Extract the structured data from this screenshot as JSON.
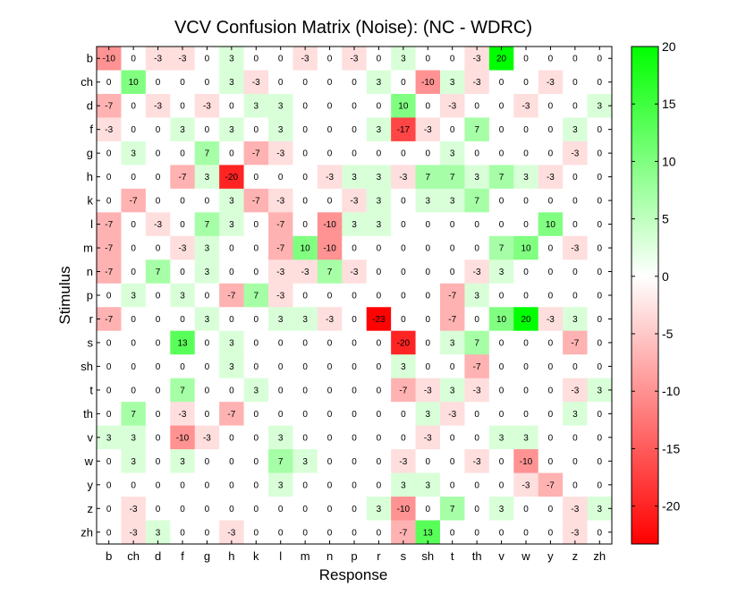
{
  "chart_data": {
    "type": "heatmap",
    "title": "VCV Confusion Matrix (Noise): (NC - WDRC)",
    "xlabel": "Response",
    "ylabel": "Stimulus",
    "x_categories": [
      "b",
      "ch",
      "d",
      "f",
      "g",
      "h",
      "k",
      "l",
      "m",
      "n",
      "p",
      "r",
      "s",
      "sh",
      "t",
      "th",
      "v",
      "w",
      "y",
      "z",
      "zh"
    ],
    "y_categories": [
      "b",
      "ch",
      "d",
      "f",
      "g",
      "h",
      "k",
      "l",
      "m",
      "n",
      "p",
      "r",
      "s",
      "sh",
      "t",
      "th",
      "v",
      "w",
      "y",
      "z",
      "zh"
    ],
    "values": [
      [
        -10,
        0,
        -3,
        -3,
        0,
        3,
        0,
        0,
        -3,
        0,
        -3,
        0,
        3,
        0,
        0,
        -3,
        20,
        0,
        0,
        0,
        0
      ],
      [
        0,
        10,
        0,
        0,
        0,
        3,
        -3,
        0,
        0,
        0,
        0,
        3,
        0,
        -10,
        3,
        -3,
        0,
        0,
        -3,
        0,
        0
      ],
      [
        -7,
        0,
        -3,
        0,
        -3,
        0,
        3,
        3,
        0,
        0,
        0,
        0,
        10,
        0,
        -3,
        0,
        0,
        -3,
        0,
        0,
        3
      ],
      [
        -3,
        0,
        0,
        3,
        0,
        3,
        0,
        3,
        0,
        0,
        0,
        3,
        -17,
        -3,
        0,
        7,
        0,
        0,
        0,
        3,
        0
      ],
      [
        0,
        3,
        0,
        0,
        7,
        0,
        -7,
        -3,
        0,
        0,
        0,
        0,
        0,
        0,
        3,
        0,
        0,
        0,
        0,
        -3,
        0
      ],
      [
        0,
        0,
        0,
        -7,
        3,
        -20,
        0,
        0,
        0,
        -3,
        3,
        3,
        -3,
        7,
        7,
        3,
        7,
        3,
        -3,
        0,
        0
      ],
      [
        0,
        -7,
        0,
        0,
        0,
        3,
        -7,
        -3,
        0,
        0,
        -3,
        3,
        0,
        3,
        3,
        7,
        0,
        0,
        0,
        0,
        0
      ],
      [
        -7,
        0,
        -3,
        0,
        7,
        3,
        0,
        -7,
        0,
        -10,
        3,
        3,
        0,
        0,
        0,
        0,
        0,
        0,
        10,
        0,
        0
      ],
      [
        -7,
        0,
        0,
        -3,
        3,
        0,
        0,
        -7,
        10,
        -10,
        0,
        0,
        0,
        0,
        0,
        0,
        7,
        10,
        0,
        -3,
        0
      ],
      [
        -7,
        0,
        7,
        0,
        3,
        0,
        0,
        -3,
        -3,
        7,
        -3,
        0,
        0,
        0,
        0,
        -3,
        3,
        0,
        0,
        0,
        0
      ],
      [
        0,
        3,
        0,
        3,
        0,
        -7,
        7,
        -3,
        0,
        0,
        0,
        0,
        0,
        0,
        -7,
        3,
        0,
        0,
        0,
        0,
        0
      ],
      [
        -7,
        0,
        0,
        0,
        3,
        0,
        0,
        3,
        3,
        -3,
        0,
        -23,
        0,
        0,
        -7,
        0,
        10,
        20,
        -3,
        3,
        0
      ],
      [
        0,
        0,
        0,
        13,
        0,
        3,
        0,
        0,
        0,
        0,
        0,
        0,
        -20,
        0,
        3,
        7,
        0,
        0,
        0,
        -7,
        0
      ],
      [
        0,
        0,
        0,
        0,
        0,
        3,
        0,
        0,
        0,
        0,
        0,
        0,
        3,
        0,
        0,
        -7,
        0,
        0,
        0,
        0,
        0
      ],
      [
        0,
        0,
        0,
        7,
        0,
        0,
        3,
        0,
        0,
        0,
        0,
        0,
        -7,
        -3,
        3,
        -3,
        0,
        0,
        0,
        -3,
        3
      ],
      [
        0,
        7,
        0,
        -3,
        0,
        -7,
        0,
        0,
        0,
        0,
        0,
        0,
        0,
        3,
        -3,
        0,
        0,
        0,
        0,
        3,
        0
      ],
      [
        3,
        3,
        0,
        -10,
        -3,
        0,
        0,
        3,
        0,
        0,
        0,
        0,
        0,
        -3,
        0,
        0,
        3,
        3,
        0,
        0,
        0
      ],
      [
        0,
        3,
        0,
        3,
        0,
        0,
        0,
        7,
        3,
        0,
        0,
        0,
        -3,
        0,
        0,
        -3,
        0,
        -10,
        0,
        0,
        0
      ],
      [
        0,
        0,
        0,
        0,
        0,
        0,
        0,
        3,
        0,
        0,
        0,
        0,
        3,
        3,
        0,
        0,
        0,
        -3,
        -7,
        0,
        0
      ],
      [
        0,
        -3,
        0,
        0,
        0,
        0,
        0,
        0,
        0,
        0,
        0,
        3,
        -10,
        0,
        7,
        0,
        3,
        0,
        0,
        -3,
        3
      ],
      [
        0,
        -3,
        3,
        0,
        0,
        -3,
        0,
        0,
        0,
        0,
        0,
        0,
        -7,
        13,
        0,
        0,
        0,
        0,
        0,
        -3,
        0
      ]
    ],
    "color_range": [
      -23.3,
      20
    ],
    "colorbar_ticks": [
      20,
      15,
      10,
      5,
      0,
      -5,
      -10,
      -15,
      -20
    ],
    "colors": {
      "positive": "#00ff00",
      "negative": "#ff0000",
      "neutral": "#ffffff"
    },
    "grid": false,
    "colorbar": "right"
  }
}
